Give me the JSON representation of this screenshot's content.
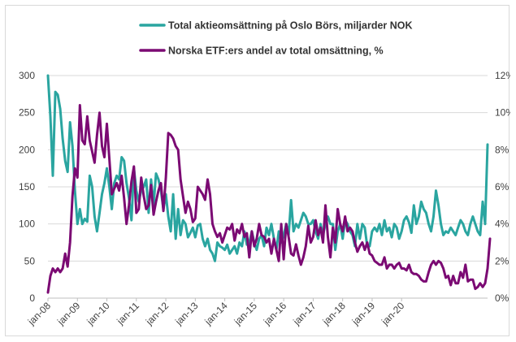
{
  "chart_data": {
    "type": "line",
    "title": "",
    "xlabel": "",
    "ylabel_left": "",
    "ylabel_right": "",
    "ylim_left": [
      0,
      300
    ],
    "ylim_right": [
      0,
      12
    ],
    "y_left_ticks": [
      "0",
      "50",
      "100",
      "150",
      "200",
      "250",
      "300"
    ],
    "y_right_ticks": [
      "0%",
      "2%",
      "4%",
      "6%",
      "8%",
      "10%",
      "12%"
    ],
    "x_tick_labels": [
      "jan-08",
      "jan-09",
      "jan-10",
      "jan-11",
      "jan-12",
      "jan-13",
      "jan-14",
      "jan-15",
      "jan-16",
      "jan-17",
      "jan-18",
      "jan-19",
      "jan-20"
    ],
    "grid": "horizontal",
    "legend_position": "top",
    "series": [
      {
        "name": "Total aktieomsättning på Oslo Börs, miljarder NOK",
        "axis": "left",
        "color": "#2aa5a0",
        "values": [
          300,
          245,
          165,
          278,
          274,
          255,
          215,
          185,
          170,
          237,
          205,
          145,
          100,
          120,
          100,
          107,
          103,
          165,
          150,
          110,
          90,
          115,
          140,
          155,
          175,
          150,
          120,
          155,
          165,
          160,
          190,
          185,
          155,
          135,
          105,
          175,
          145,
          130,
          145,
          150,
          160,
          115,
          160,
          125,
          168,
          160,
          145,
          120,
          140,
          110,
          90,
          140,
          80,
          120,
          85,
          105,
          100,
          82,
          88,
          95,
          82,
          98,
          100,
          80,
          70,
          80,
          65,
          60,
          50,
          75,
          70,
          68,
          65,
          72,
          60,
          65,
          70,
          60,
          75,
          70,
          90,
          72,
          75,
          90,
          75,
          65,
          80,
          85,
          70,
          95,
          85,
          100,
          80,
          65,
          90,
          75,
          85,
          100,
          85,
          132,
          90,
          100,
          95,
          105,
          115,
          110,
          100,
          100,
          105,
          90,
          80,
          100,
          85,
          100,
          110,
          100,
          100,
          65,
          90,
          100,
          80,
          105,
          100,
          90,
          85,
          70,
          100,
          80,
          100,
          95,
          70,
          70,
          90,
          95,
          90,
          100,
          85,
          105,
          90,
          95,
          82,
          100,
          95,
          80,
          90,
          105,
          110,
          102,
          88,
          125,
          100,
          110,
          130,
          120,
          115,
          100,
          90,
          110,
          145,
          125,
          100,
          85,
          90,
          88,
          95,
          90,
          85,
          95,
          105,
          100,
          90,
          85,
          100,
          110,
          100,
          90,
          85,
          130,
          100,
          207
        ]
      },
      {
        "name": "Norska ETF:ers andel av total omsättning, %",
        "axis": "right",
        "color": "#7b0a73",
        "values": [
          0.3,
          1.2,
          1.6,
          1.4,
          1.6,
          1.4,
          1.6,
          2.4,
          1.7,
          3.0,
          5.5,
          7.0,
          6.5,
          10.4,
          8.5,
          8.3,
          9.8,
          8.5,
          7.9,
          7.3,
          8.8,
          10.0,
          8.2,
          7.6,
          9.4,
          7.5,
          5.6,
          5.9,
          6.2,
          5.8,
          6.6,
          5.4,
          4.0,
          5.0,
          6.3,
          7.1,
          4.6,
          4.8,
          6.5,
          5.5,
          4.8,
          5.0,
          6.1,
          4.5,
          5.2,
          5.8,
          6.2,
          4.7,
          6.5,
          8.9,
          8.8,
          8.6,
          8.2,
          8.0,
          6.4,
          5.5,
          4.6,
          5.2,
          4.8,
          4.1,
          4.3,
          6.0,
          5.8,
          5.6,
          5.3,
          6.4,
          5.6,
          4.0,
          3.6,
          3.3,
          3.5,
          3.0,
          3.4,
          3.8,
          3.7,
          4.0,
          3.1,
          3.7,
          3.5,
          4.0,
          3.3,
          3.5,
          2.2,
          3.6,
          2.8,
          3.2,
          4.0,
          3.4,
          3.3,
          3.0,
          3.2,
          2.4,
          3.2,
          2.6,
          2.0,
          4.0,
          2.1,
          4.0,
          3.3,
          2.4,
          2.3,
          2.9,
          2.3,
          1.8,
          2.2,
          2.8,
          3.9,
          3.0,
          3.3,
          4.2,
          3.4,
          3.8,
          3.0,
          5.0,
          3.3,
          2.2,
          3.8,
          3.0,
          4.8,
          4.0,
          3.6,
          4.4,
          3.6,
          3.8,
          3.6,
          3.0,
          2.5,
          2.8,
          3.0,
          2.6,
          3.0,
          2.4,
          2.3,
          2.0,
          1.9,
          1.8,
          1.8,
          2.2,
          1.6,
          1.8,
          1.8,
          1.6,
          1.8,
          1.9,
          1.6,
          1.6,
          1.5,
          1.8,
          1.4,
          1.3,
          1.3,
          1.2,
          1.0,
          0.9,
          0.9,
          1.4,
          1.8,
          2.0,
          1.8,
          2.0,
          1.9,
          1.6,
          1.1,
          1.2,
          0.7,
          1.2,
          0.8,
          0.8,
          1.4,
          1.1,
          1.8,
          0.9,
          1.0,
          1.0,
          0.5,
          0.6,
          0.8,
          0.6,
          0.8,
          1.6,
          3.2
        ]
      }
    ]
  }
}
